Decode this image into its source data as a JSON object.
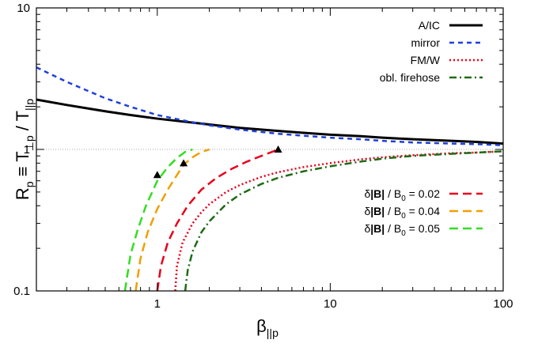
{
  "chart_data": {
    "type": "line",
    "xscale": "log",
    "yscale": "log",
    "xlim": [
      0.2,
      100
    ],
    "ylim": [
      0.1,
      10
    ],
    "x_ticks": [
      {
        "value": 1,
        "label": "1"
      },
      {
        "value": 10,
        "label": "10"
      },
      {
        "value": 100,
        "label": "100"
      }
    ],
    "y_ticks": [
      {
        "value": 0.1,
        "label": "0.1"
      },
      {
        "value": 1,
        "label": "1"
      },
      {
        "value": 10,
        "label": "10"
      }
    ],
    "xlabel": {
      "main": "β",
      "sub": "||p"
    },
    "ylabel": {
      "main": "R",
      "sub1": "p",
      "mid": " ≡ T",
      "sub2": "⊥p",
      "mid2": " / T",
      "sub3": "||p"
    },
    "reference_line": {
      "y": 1,
      "color": "#aaaaaa",
      "style": "dotted"
    },
    "series": [
      {
        "name": "A/IC",
        "color": "#000000",
        "dash": "solid",
        "width": 3,
        "x": [
          0.2,
          0.3,
          0.5,
          0.7,
          1,
          1.5,
          2,
          3,
          5,
          7,
          10,
          15,
          20,
          30,
          50,
          70,
          100
        ],
        "y": [
          2.25,
          2.06,
          1.86,
          1.75,
          1.65,
          1.56,
          1.5,
          1.42,
          1.35,
          1.31,
          1.27,
          1.24,
          1.21,
          1.18,
          1.15,
          1.13,
          1.1
        ]
      },
      {
        "name": "mirror",
        "color": "#1f3fdc",
        "dash": "6,5",
        "width": 2.5,
        "x": [
          0.2,
          0.3,
          0.5,
          0.7,
          1,
          1.5,
          2,
          3,
          5,
          7,
          10,
          15,
          20,
          30,
          50,
          70,
          100
        ],
        "y": [
          3.8,
          3.0,
          2.3,
          2.0,
          1.75,
          1.58,
          1.48,
          1.38,
          1.29,
          1.25,
          1.21,
          1.18,
          1.15,
          1.12,
          1.1,
          1.09,
          1.07
        ]
      },
      {
        "name": "FM/W",
        "color": "#e8001c",
        "dash": "2,3",
        "width": 2.5,
        "x": [
          1.27,
          1.3,
          1.4,
          1.6,
          1.8,
          2,
          2.5,
          3,
          4,
          5,
          7,
          10,
          15,
          20,
          30,
          50,
          70,
          100
        ],
        "y": [
          0.1,
          0.15,
          0.22,
          0.3,
          0.36,
          0.41,
          0.5,
          0.56,
          0.64,
          0.69,
          0.75,
          0.8,
          0.85,
          0.88,
          0.91,
          0.94,
          0.95,
          0.97
        ]
      },
      {
        "name": "obl. firehose",
        "color": "#1e6b14",
        "dash": "9,4,2,4",
        "width": 2.5,
        "x": [
          1.45,
          1.5,
          1.6,
          1.8,
          2,
          2.5,
          3,
          4,
          5,
          7,
          10,
          15,
          20,
          30,
          50,
          70,
          100
        ],
        "y": [
          0.1,
          0.14,
          0.19,
          0.26,
          0.31,
          0.41,
          0.48,
          0.57,
          0.63,
          0.7,
          0.76,
          0.82,
          0.86,
          0.9,
          0.93,
          0.95,
          0.97
        ]
      },
      {
        "name": "δ|B| / B0 = 0.02",
        "label_prefix": "δ",
        "label_bold": "|B|",
        "label_mid": " / B",
        "label_sub": "0",
        "label_suffix": " = 0.02",
        "color": "#e8001c",
        "dash": "11,6",
        "width": 2.5,
        "x": [
          1.0,
          1.05,
          1.15,
          1.3,
          1.5,
          1.8,
          2.2,
          2.7,
          3.3,
          4.0,
          4.6,
          5.0
        ],
        "y": [
          0.1,
          0.15,
          0.22,
          0.3,
          0.4,
          0.52,
          0.63,
          0.73,
          0.82,
          0.9,
          0.96,
          1.0
        ]
      },
      {
        "name": "δ|B| / B0 = 0.04",
        "label_prefix": "δ",
        "label_bold": "|B|",
        "label_mid": " / B",
        "label_sub": "0",
        "label_suffix": " = 0.04",
        "color": "#f0a000",
        "dash": "11,6",
        "width": 2.5,
        "x": [
          0.75,
          0.8,
          0.88,
          1.0,
          1.15,
          1.3,
          1.42,
          1.6,
          1.8,
          2.0
        ],
        "y": [
          0.1,
          0.17,
          0.26,
          0.38,
          0.52,
          0.66,
          0.78,
          0.88,
          0.96,
          1.0
        ]
      },
      {
        "name": "δ|B| / B0 = 0.05",
        "label_prefix": "δ",
        "label_bold": "|B|",
        "label_mid": " / B",
        "label_sub": "0",
        "label_suffix": " = 0.05",
        "color": "#33dd22",
        "dash": "11,6",
        "width": 2.5,
        "x": [
          0.65,
          0.7,
          0.77,
          0.86,
          1.0,
          1.15,
          1.3,
          1.45,
          1.6
        ],
        "y": [
          0.1,
          0.18,
          0.27,
          0.4,
          0.6,
          0.75,
          0.87,
          0.96,
          1.0
        ]
      }
    ],
    "markers": [
      {
        "x": 1.0,
        "y": 0.66,
        "shape": "triangle",
        "color": "#000000"
      },
      {
        "x": 1.42,
        "y": 0.8,
        "shape": "triangle",
        "color": "#000000"
      },
      {
        "x": 5.0,
        "y": 1.0,
        "shape": "triangle",
        "color": "#000000"
      }
    ],
    "legend": {
      "groups": [
        {
          "placement": "top-right",
          "series": [
            0,
            1,
            2,
            3
          ]
        },
        {
          "placement": "middle-right",
          "series": [
            4,
            5,
            6
          ]
        }
      ]
    }
  }
}
